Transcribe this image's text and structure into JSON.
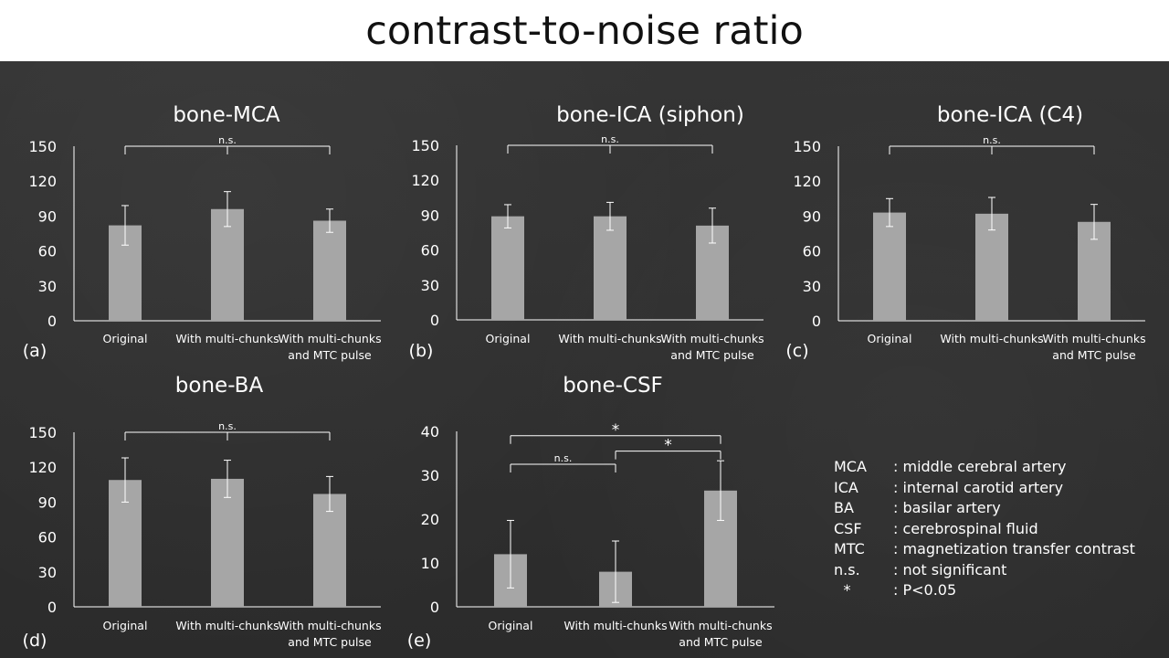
{
  "title": "contrast-to-noise ratio",
  "chart_data": [
    {
      "type": "bar",
      "panel": "(a)",
      "title": "bone-MCA",
      "categories": [
        "Original",
        "With multi-chunks",
        "With multi-chunks\nand MTC pulse"
      ],
      "values": [
        82,
        96,
        86
      ],
      "errors": [
        17,
        15,
        10
      ],
      "ylim": [
        0,
        150
      ],
      "yticks": [
        0,
        30,
        60,
        90,
        120,
        150
      ],
      "significance": [
        {
          "from": 0,
          "to": 2,
          "mid": 1,
          "label": "n.s.",
          "y": 150
        }
      ]
    },
    {
      "type": "bar",
      "panel": "(b)",
      "title": "bone-ICA (siphon)",
      "categories": [
        "Original",
        "With multi-chunks",
        "With multi-chunks\nand MTC pulse"
      ],
      "values": [
        89,
        89,
        81
      ],
      "errors": [
        10,
        12,
        15
      ],
      "ylim": [
        0,
        150
      ],
      "yticks": [
        0,
        30,
        60,
        90,
        120,
        150
      ],
      "significance": [
        {
          "from": 0,
          "to": 2,
          "mid": 1,
          "label": "n.s.",
          "y": 150
        }
      ]
    },
    {
      "type": "bar",
      "panel": "(c)",
      "title": "bone-ICA (C4)",
      "categories": [
        "Original",
        "With multi-chunks",
        "With multi-chunks\nand MTC pulse"
      ],
      "values": [
        93,
        92,
        85
      ],
      "errors": [
        12,
        14,
        15
      ],
      "ylim": [
        0,
        150
      ],
      "yticks": [
        0,
        30,
        60,
        90,
        120,
        150
      ],
      "significance": [
        {
          "from": 0,
          "to": 2,
          "mid": 1,
          "label": "n.s.",
          "y": 150
        }
      ]
    },
    {
      "type": "bar",
      "panel": "(d)",
      "title": "bone-BA",
      "categories": [
        "Original",
        "With multi-chunks",
        "With multi-chunks\nand MTC pulse"
      ],
      "values": [
        109,
        110,
        97
      ],
      "errors": [
        19,
        16,
        15
      ],
      "ylim": [
        0,
        150
      ],
      "yticks": [
        0,
        30,
        60,
        90,
        120,
        150
      ],
      "significance": [
        {
          "from": 0,
          "to": 2,
          "mid": 1,
          "label": "n.s.",
          "y": 150
        }
      ]
    },
    {
      "type": "bar",
      "panel": "(e)",
      "title": "bone-CSF",
      "categories": [
        "Original",
        "With multi-chunks",
        "With multi-chunks\nand MTC pulse"
      ],
      "values": [
        12,
        8,
        26.5
      ],
      "errors": [
        7.7,
        7,
        6.8
      ],
      "ylim": [
        0,
        40
      ],
      "yticks": [
        0,
        10,
        20,
        30,
        40
      ],
      "significance": [
        {
          "from": 0,
          "to": 2,
          "label": "*",
          "y": 39
        },
        {
          "from": 1,
          "to": 2,
          "label": "*",
          "y": 35.5
        },
        {
          "from": 0,
          "to": 1,
          "label": "n.s.",
          "y": 32.5
        }
      ]
    }
  ],
  "abbreviations": [
    {
      "key": "MCA",
      "value": ": middle cerebral artery"
    },
    {
      "key": "ICA",
      "value": ": internal carotid artery"
    },
    {
      "key": "BA",
      "value": ": basilar artery"
    },
    {
      "key": "CSF",
      "value": ": cerebrospinal fluid"
    },
    {
      "key": "MTC",
      "value": ": magnetization transfer contrast"
    },
    {
      "key": "n.s.",
      "value": ": not significant"
    },
    {
      "key": "*",
      "value": ": P<0.05"
    }
  ],
  "colors": {
    "bar": "#a6a6a6",
    "axis": "#ffffff",
    "text": "#ffffff",
    "title_band": "#ffffff",
    "title_text": "#111111"
  }
}
